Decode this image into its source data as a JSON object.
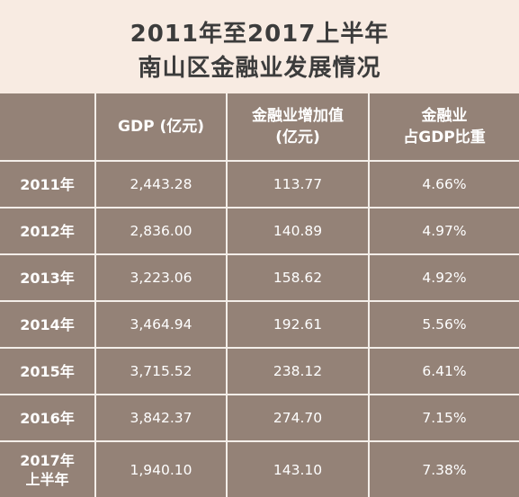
{
  "title": {
    "line1": "2011年至2017上半年",
    "line2": "南山区金融业发展情况"
  },
  "table": {
    "headers": [
      {
        "lines": [
          "GDP (亿元)"
        ]
      },
      {
        "lines": [
          "金融业增加值",
          "(亿元)"
        ]
      },
      {
        "lines": [
          "金融业",
          "占GDP比重"
        ]
      }
    ],
    "rows": [
      {
        "year": [
          "2011年"
        ],
        "gdp": "2,443.28",
        "finance": "113.77",
        "share": "4.66%"
      },
      {
        "year": [
          "2012年"
        ],
        "gdp": "2,836.00",
        "finance": "140.89",
        "share": "4.97%"
      },
      {
        "year": [
          "2013年"
        ],
        "gdp": "3,223.06",
        "finance": "158.62",
        "share": "4.92%"
      },
      {
        "year": [
          "2014年"
        ],
        "gdp": "3,464.94",
        "finance": "192.61",
        "share": "5.56%"
      },
      {
        "year": [
          "2015年"
        ],
        "gdp": "3,715.52",
        "finance": "238.12",
        "share": "6.41%"
      },
      {
        "year": [
          "2016年"
        ],
        "gdp": "3,842.37",
        "finance": "274.70",
        "share": "7.15%"
      },
      {
        "year": [
          "2017年",
          "上半年"
        ],
        "gdp": "1,940.10",
        "finance": "143.10",
        "share": "7.38%"
      }
    ]
  }
}
